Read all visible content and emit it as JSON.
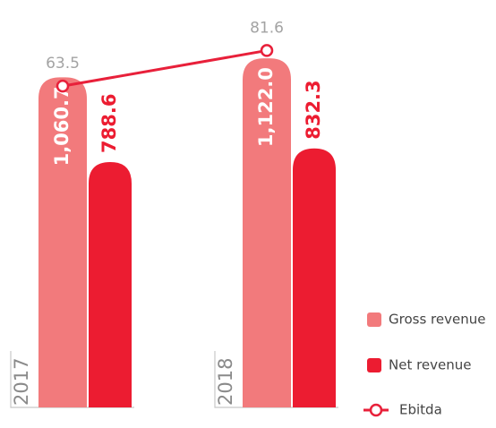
{
  "chart_data": {
    "type": "bar",
    "categories": [
      "2017",
      "2018"
    ],
    "series": [
      {
        "name": "Gross revenue",
        "color": "#f27a7c",
        "values": [
          1060.7,
          1122.0
        ],
        "value_labels": [
          "1,060.7",
          "1,122.0"
        ]
      },
      {
        "name": "Net revenue",
        "color": "#ec1c31",
        "values": [
          788.6,
          832.3
        ]
      },
      {
        "name": "Ebitda",
        "type": "line",
        "axis": "y2",
        "color": "#e8203a",
        "values": [
          63.5,
          81.6
        ]
      }
    ],
    "ylim": [
      0,
      1200
    ],
    "y2lim": [
      -100,
      90
    ],
    "legend": "right"
  }
}
